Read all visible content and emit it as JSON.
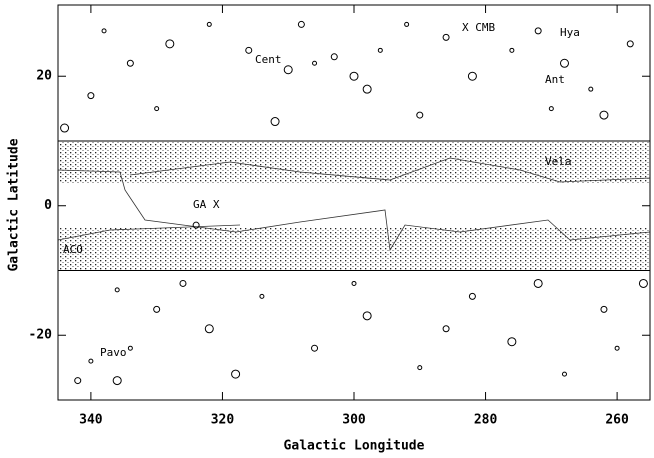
{
  "chart_data": {
    "type": "scatter",
    "xlabel": "Galactic Longitude",
    "ylabel": "Galactic Latitude",
    "xlim": [
      345,
      255
    ],
    "ylim": [
      -30,
      31
    ],
    "xticks": [
      340,
      320,
      300,
      280,
      260
    ],
    "yticks": [
      -20,
      0,
      20
    ],
    "hlines": [
      10,
      -10
    ],
    "color": "#000000",
    "annotations": [
      "X CMB",
      "Hya",
      "Cent",
      "Ant",
      "Vela",
      "GA X",
      "ACO",
      "Pavo"
    ],
    "x": [
      338,
      334,
      328,
      322,
      316,
      310,
      306,
      303,
      298,
      292,
      286,
      282,
      276,
      272,
      268,
      264,
      258,
      262,
      270,
      290,
      312,
      330,
      340,
      344,
      336,
      330,
      322,
      314,
      306,
      298,
      290,
      282,
      276,
      268,
      262,
      256,
      340,
      342,
      336,
      334,
      326,
      318,
      300,
      286,
      272,
      260,
      324,
      300,
      296,
      308
    ],
    "values": [
      27,
      22,
      25,
      28,
      24,
      21,
      22,
      23,
      18,
      28,
      26,
      20,
      24,
      27,
      22,
      18,
      25,
      14,
      15,
      14,
      13,
      15,
      17,
      12,
      -13,
      -16,
      -19,
      -14,
      -22,
      -17,
      -25,
      -14,
      -21,
      -26,
      -16,
      -12,
      -24,
      -27,
      -27,
      -22,
      -12,
      -26,
      -12,
      -19,
      -12,
      -22,
      -3,
      20,
      24,
      28
    ]
  }
}
